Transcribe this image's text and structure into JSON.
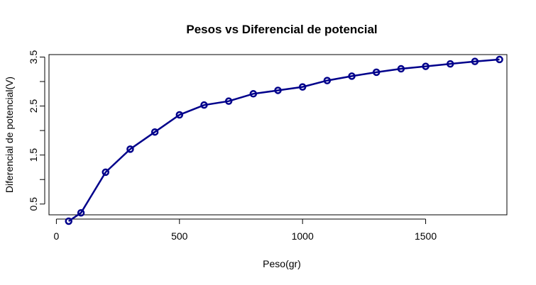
{
  "chart_data": {
    "type": "line",
    "title": "Pesos vs Diferencial de potencial",
    "xlabel": "Peso(gr)",
    "ylabel": "Diferencial de potencial(V)",
    "x_ticks": [
      0,
      500,
      1000,
      1500
    ],
    "y_ticks": [
      0.5,
      1,
      1.5,
      2,
      2.5,
      3,
      3.5
    ],
    "y_tick_labels": [
      "0.5",
      "",
      "1.5",
      "",
      "2.5",
      "",
      "3.5"
    ],
    "xlim": [
      -30,
      1830
    ],
    "ylim": [
      0.28,
      3.55
    ],
    "grid": false,
    "color": "#00008b",
    "series": [
      {
        "x": [
          50,
          100,
          200,
          300,
          400,
          500,
          600,
          700,
          800,
          900,
          1000,
          1100,
          1200,
          1300,
          1400,
          1500,
          1600,
          1700,
          1800
        ],
        "y": [
          0.15,
          0.32,
          1.15,
          1.62,
          1.97,
          2.32,
          2.52,
          2.6,
          2.75,
          2.82,
          2.89,
          3.02,
          3.11,
          3.19,
          3.26,
          3.31,
          3.36,
          3.41,
          3.45
        ]
      }
    ]
  }
}
